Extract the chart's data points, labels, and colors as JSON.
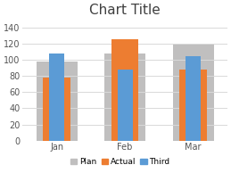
{
  "title": "Chart Title",
  "categories": [
    "Jan",
    "Feb",
    "Mar"
  ],
  "series": {
    "Plan": [
      98,
      108,
      120
    ],
    "Actual": [
      78,
      125,
      88
    ],
    "Third": [
      108,
      88,
      104
    ]
  },
  "colors": {
    "Plan": "#c0bfbf",
    "Actual": "#ed7d31",
    "Third": "#5b9bd5"
  },
  "widths": {
    "Plan": 0.6,
    "Actual": 0.4,
    "Third": 0.22
  },
  "zorders": {
    "Plan": 2,
    "Actual": 3,
    "Third": 4
  },
  "ylim": [
    0,
    150
  ],
  "yticks": [
    0,
    20,
    40,
    60,
    80,
    100,
    120,
    140
  ],
  "background_color": "#ffffff",
  "grid_color": "#d9d9d9",
  "title_fontsize": 11,
  "tick_fontsize": 7,
  "legend_fontsize": 6.5
}
